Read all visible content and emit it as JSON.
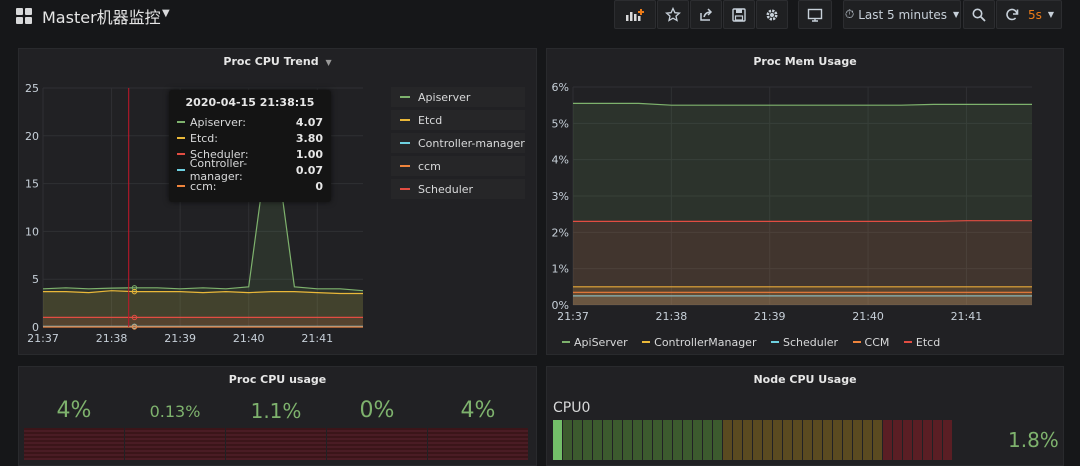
{
  "header": {
    "title": "Master机器监控",
    "time_range": "Last 5 minutes",
    "refresh_interval": "5s"
  },
  "cpu_trend": {
    "title": "Proc CPU Trend",
    "legend": [
      {
        "label": "Apiserver",
        "color": "#7eb26d"
      },
      {
        "label": "Etcd",
        "color": "#eab839"
      },
      {
        "label": "Controller-manager",
        "color": "#6ed0e0"
      },
      {
        "label": "ccm",
        "color": "#ef843c"
      },
      {
        "label": "Scheduler",
        "color": "#e24d42"
      }
    ],
    "tooltip": {
      "time": "2020-04-15 21:38:15",
      "rows": [
        {
          "label": "Apiserver:",
          "value": "4.07",
          "color": "#7eb26d"
        },
        {
          "label": "Etcd:",
          "value": "3.80",
          "color": "#eab839"
        },
        {
          "label": "Scheduler:",
          "value": "1.00",
          "color": "#e24d42"
        },
        {
          "label": "Controller-manager:",
          "value": "0.07",
          "color": "#6ed0e0"
        },
        {
          "label": "ccm:",
          "value": "0",
          "color": "#ef843c"
        }
      ]
    }
  },
  "mem_usage": {
    "title": "Proc Mem Usage",
    "legend": [
      {
        "label": "ApiServer",
        "color": "#7eb26d"
      },
      {
        "label": "ControllerManager",
        "color": "#eab839"
      },
      {
        "label": "Scheduler",
        "color": "#6ed0e0"
      },
      {
        "label": "CCM",
        "color": "#ef843c"
      },
      {
        "label": "Etcd",
        "color": "#e24d42"
      }
    ]
  },
  "proc_cpu_usage": {
    "title": "Proc CPU usage",
    "stats": [
      {
        "value": "4%"
      },
      {
        "value": "0.13%"
      },
      {
        "value": "1.1%"
      },
      {
        "value": "0%"
      },
      {
        "value": "4%"
      }
    ]
  },
  "node_cpu": {
    "title": "Node CPU Usage",
    "label": "CPU0",
    "value": "1.8%",
    "level_percent": 1.8
  },
  "chart_data": [
    {
      "type": "line",
      "title": "Proc CPU Trend",
      "x": [
        "21:37",
        "21:37:20",
        "21:37:40",
        "21:38",
        "21:38:20",
        "21:38:40",
        "21:39",
        "21:39:20",
        "21:39:40",
        "21:40",
        "21:40:20",
        "21:40:40",
        "21:41",
        "21:41:20",
        "21:41:40"
      ],
      "x_ticks": [
        "21:37",
        "21:38",
        "21:39",
        "21:40",
        "21:41"
      ],
      "y_ticks": [
        "0",
        "5",
        "10",
        "15",
        "20",
        "25"
      ],
      "ylim": [
        0,
        25
      ],
      "grid": true,
      "legend_position": "right",
      "series": [
        {
          "name": "Apiserver",
          "color": "#7eb26d",
          "values": [
            4.0,
            4.1,
            4.0,
            4.07,
            4.1,
            4.1,
            4.0,
            4.1,
            4.0,
            4.2,
            22.0,
            4.2,
            4.0,
            4.0,
            3.8
          ]
        },
        {
          "name": "Etcd",
          "color": "#eab839",
          "values": [
            3.7,
            3.7,
            3.6,
            3.8,
            3.7,
            3.7,
            3.7,
            3.6,
            3.7,
            3.6,
            3.7,
            3.7,
            3.6,
            3.5,
            3.5
          ]
        },
        {
          "name": "Controller-manager",
          "color": "#6ed0e0",
          "values": [
            0.07,
            0.07,
            0.07,
            0.07,
            0.07,
            0.07,
            0.07,
            0.07,
            0.07,
            0.07,
            0.07,
            0.07,
            0.07,
            0.07,
            0.07
          ]
        },
        {
          "name": "ccm",
          "color": "#ef843c",
          "values": [
            0,
            0,
            0,
            0,
            0,
            0,
            0,
            0,
            0,
            0,
            0,
            0,
            0,
            0,
            0
          ]
        },
        {
          "name": "Scheduler",
          "color": "#e24d42",
          "values": [
            1.0,
            1.0,
            1.0,
            1.0,
            1.0,
            1.0,
            1.0,
            1.0,
            1.0,
            1.0,
            1.0,
            1.0,
            1.0,
            1.0,
            1.0
          ]
        }
      ]
    },
    {
      "type": "area",
      "title": "Proc Mem Usage",
      "x": [
        "21:37",
        "21:37:20",
        "21:37:40",
        "21:38",
        "21:38:20",
        "21:38:40",
        "21:39",
        "21:39:20",
        "21:39:40",
        "21:40",
        "21:40:20",
        "21:40:40",
        "21:41",
        "21:41:20",
        "21:41:40"
      ],
      "x_ticks": [
        "21:37",
        "21:38",
        "21:39",
        "21:40",
        "21:41"
      ],
      "y_ticks": [
        "0%",
        "1%",
        "2%",
        "3%",
        "4%",
        "5%",
        "6%"
      ],
      "ylim": [
        0,
        6
      ],
      "grid": true,
      "legend_position": "bottom",
      "series": [
        {
          "name": "ApiServer",
          "color": "#7eb26d",
          "values": [
            5.55,
            5.55,
            5.55,
            5.5,
            5.5,
            5.5,
            5.5,
            5.5,
            5.5,
            5.5,
            5.5,
            5.52,
            5.52,
            5.52,
            5.52
          ]
        },
        {
          "name": "ControllerManager",
          "color": "#eab839",
          "values": [
            0.5,
            0.5,
            0.5,
            0.5,
            0.5,
            0.5,
            0.5,
            0.5,
            0.5,
            0.5,
            0.5,
            0.5,
            0.5,
            0.5,
            0.5
          ]
        },
        {
          "name": "Scheduler",
          "color": "#6ed0e0",
          "values": [
            0.25,
            0.25,
            0.25,
            0.25,
            0.25,
            0.25,
            0.25,
            0.25,
            0.25,
            0.25,
            0.25,
            0.25,
            0.25,
            0.25,
            0.25
          ]
        },
        {
          "name": "CCM",
          "color": "#ef843c",
          "values": [
            0.35,
            0.35,
            0.35,
            0.35,
            0.35,
            0.35,
            0.35,
            0.35,
            0.35,
            0.35,
            0.35,
            0.35,
            0.35,
            0.35,
            0.35
          ]
        },
        {
          "name": "Etcd",
          "color": "#e24d42",
          "values": [
            2.3,
            2.3,
            2.3,
            2.3,
            2.3,
            2.3,
            2.3,
            2.3,
            2.3,
            2.3,
            2.3,
            2.3,
            2.32,
            2.32,
            2.32
          ]
        }
      ]
    }
  ]
}
